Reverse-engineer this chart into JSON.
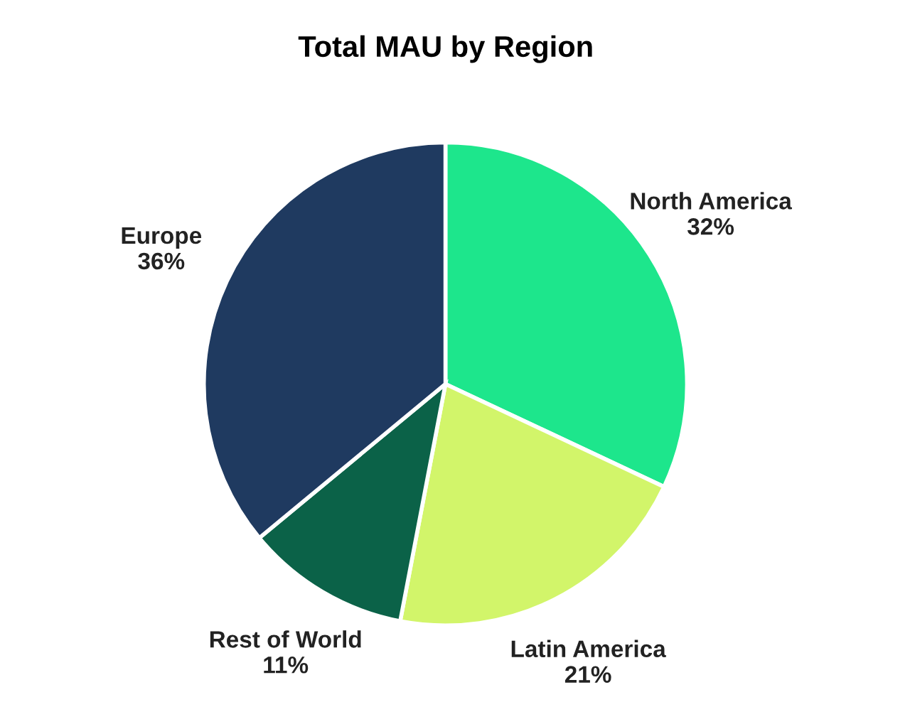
{
  "chart_data": {
    "type": "pie",
    "title": "Total MAU by Region",
    "categories": [
      "North America",
      "Latin America",
      "Rest of World",
      "Europe"
    ],
    "values": [
      32,
      21,
      11,
      36
    ],
    "colors": [
      "#1de68c",
      "#d2f56a",
      "#0b6248",
      "#1f3a60"
    ],
    "value_labels": [
      "32%",
      "21%",
      "11%",
      "36%"
    ]
  }
}
